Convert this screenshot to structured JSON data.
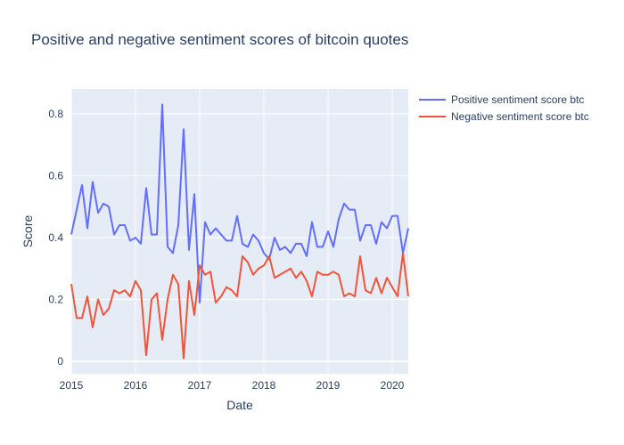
{
  "chart_data": {
    "type": "line",
    "title": "Positive and negative sentiment scores of bitcoin quotes",
    "xlabel": "Date",
    "ylabel": "Score",
    "x_ticks": [
      "2015",
      "2016",
      "2017",
      "2018",
      "2019",
      "2020"
    ],
    "y_ticks": [
      0,
      0.2,
      0.4,
      0.6,
      0.8
    ],
    "y_tick_labels": [
      "0",
      "0.2",
      "0.4",
      "0.6",
      "0.8"
    ],
    "xlim": [
      2015.0,
      2020.25
    ],
    "ylim": [
      -0.04,
      0.88
    ],
    "grid": true,
    "legend_position": "top-right",
    "background_color": "#e5ecf6",
    "x": [
      2015.0,
      2015.083,
      2015.167,
      2015.25,
      2015.333,
      2015.417,
      2015.5,
      2015.583,
      2015.667,
      2015.75,
      2015.833,
      2015.917,
      2016.0,
      2016.083,
      2016.167,
      2016.25,
      2016.333,
      2016.417,
      2016.5,
      2016.583,
      2016.667,
      2016.75,
      2016.833,
      2016.917,
      2017.0,
      2017.083,
      2017.167,
      2017.25,
      2017.333,
      2017.417,
      2017.5,
      2017.583,
      2017.667,
      2017.75,
      2017.833,
      2017.917,
      2018.0,
      2018.083,
      2018.167,
      2018.25,
      2018.333,
      2018.417,
      2018.5,
      2018.583,
      2018.667,
      2018.75,
      2018.833,
      2018.917,
      2019.0,
      2019.083,
      2019.167,
      2019.25,
      2019.333,
      2019.417,
      2019.5,
      2019.583,
      2019.667,
      2019.75,
      2019.833,
      2019.917,
      2020.0,
      2020.083,
      2020.167,
      2020.25
    ],
    "series": [
      {
        "name": "Positive sentiment score btc",
        "color": "#636efa",
        "values": [
          0.41,
          0.49,
          0.57,
          0.43,
          0.58,
          0.48,
          0.51,
          0.5,
          0.41,
          0.44,
          0.44,
          0.39,
          0.4,
          0.38,
          0.56,
          0.41,
          0.41,
          0.83,
          0.37,
          0.35,
          0.44,
          0.75,
          0.36,
          0.54,
          0.19,
          0.45,
          0.41,
          0.43,
          0.41,
          0.39,
          0.39,
          0.47,
          0.38,
          0.37,
          0.41,
          0.39,
          0.35,
          0.33,
          0.4,
          0.36,
          0.37,
          0.35,
          0.38,
          0.38,
          0.34,
          0.45,
          0.37,
          0.37,
          0.42,
          0.37,
          0.46,
          0.51,
          0.49,
          0.49,
          0.39,
          0.44,
          0.44,
          0.38,
          0.45,
          0.43,
          0.47,
          0.47,
          0.35,
          0.43
        ]
      },
      {
        "name": "Negative sentiment score btc",
        "color": "#ef553b",
        "values": [
          0.25,
          0.14,
          0.14,
          0.21,
          0.11,
          0.2,
          0.15,
          0.17,
          0.23,
          0.22,
          0.23,
          0.21,
          0.26,
          0.23,
          0.02,
          0.2,
          0.22,
          0.07,
          0.2,
          0.28,
          0.25,
          0.01,
          0.26,
          0.15,
          0.31,
          0.28,
          0.29,
          0.19,
          0.21,
          0.24,
          0.23,
          0.21,
          0.34,
          0.32,
          0.28,
          0.3,
          0.31,
          0.34,
          0.27,
          0.28,
          0.29,
          0.3,
          0.27,
          0.29,
          0.26,
          0.21,
          0.29,
          0.28,
          0.28,
          0.29,
          0.28,
          0.21,
          0.22,
          0.21,
          0.34,
          0.23,
          0.22,
          0.27,
          0.22,
          0.27,
          0.24,
          0.21,
          0.35,
          0.21
        ]
      }
    ]
  }
}
